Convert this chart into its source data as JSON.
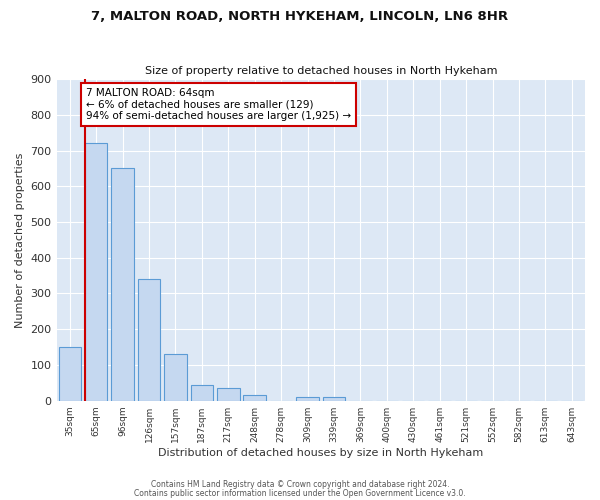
{
  "title1": "7, MALTON ROAD, NORTH HYKEHAM, LINCOLN, LN6 8HR",
  "title2": "Size of property relative to detached houses in North Hykeham",
  "xlabel": "Distribution of detached houses by size in North Hykeham",
  "ylabel": "Number of detached properties",
  "categories": [
    "35sqm",
    "65sqm",
    "96sqm",
    "126sqm",
    "157sqm",
    "187sqm",
    "217sqm",
    "248sqm",
    "278sqm",
    "309sqm",
    "339sqm",
    "369sqm",
    "400sqm",
    "430sqm",
    "461sqm",
    "521sqm",
    "552sqm",
    "582sqm",
    "613sqm",
    "643sqm"
  ],
  "values": [
    150,
    720,
    650,
    340,
    130,
    45,
    35,
    15,
    0,
    10,
    10,
    0,
    0,
    0,
    0,
    0,
    0,
    0,
    0,
    0
  ],
  "bar_color": "#c5d8f0",
  "bar_edge_color": "#5b9bd5",
  "plot_bg_color": "#dde8f5",
  "fig_bg_color": "#ffffff",
  "grid_color": "#ffffff",
  "marker_color": "#cc0000",
  "annotation_text": "7 MALTON ROAD: 64sqm\n← 6% of detached houses are smaller (129)\n94% of semi-detached houses are larger (1,925) →",
  "annotation_box_color": "#ffffff",
  "annotation_box_edge": "#cc0000",
  "footer1": "Contains HM Land Registry data © Crown copyright and database right 2024.",
  "footer2": "Contains public sector information licensed under the Open Government Licence v3.0.",
  "ylim": [
    0,
    900
  ],
  "yticks": [
    0,
    100,
    200,
    300,
    400,
    500,
    600,
    700,
    800,
    900
  ]
}
